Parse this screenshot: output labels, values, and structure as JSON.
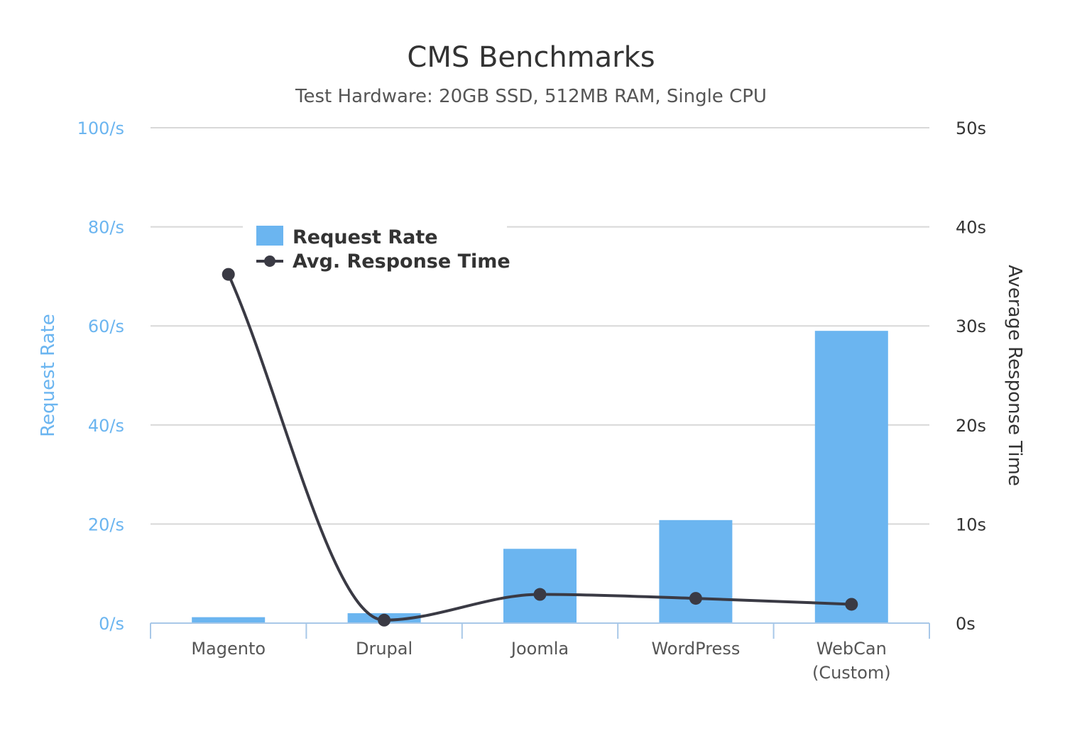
{
  "chart_data": {
    "type": "bar",
    "title": "CMS Benchmarks",
    "subtitle": "Test Hardware: 20GB SSD, 512MB RAM, Single CPU",
    "categories": [
      "Magento",
      "Drupal",
      "Joomla",
      "WordPress",
      "WebCan (Custom)"
    ],
    "series": [
      {
        "name": "Request Rate",
        "type": "bar",
        "axis": "left",
        "values": [
          1.2,
          2.0,
          15.0,
          20.8,
          59.0
        ]
      },
      {
        "name": "Avg. Response Time",
        "type": "line",
        "axis": "right",
        "values": [
          35.2,
          0.3,
          2.9,
          2.5,
          1.9
        ]
      }
    ],
    "y_left": {
      "label": "Request Rate",
      "min": 0,
      "max": 100,
      "ticks": [
        "0/s",
        "20/s",
        "40/s",
        "60/s",
        "80/s",
        "100/s"
      ]
    },
    "y_right": {
      "label": "Average Response Time",
      "min": 0,
      "max": 50,
      "ticks": [
        "0s",
        "10s",
        "20s",
        "30s",
        "40s",
        "50s"
      ]
    },
    "grid": true,
    "legend": {
      "position": "top-left",
      "entries": [
        "Request Rate",
        "Avg. Response Time"
      ]
    },
    "colors": {
      "bar": "#6bb5f0",
      "line": "#3a3a44",
      "grid": "#d8d8d8",
      "left_axis": "#6bb5f0",
      "right_axis": "#333333",
      "x_axis": "#a8c8e8"
    }
  }
}
